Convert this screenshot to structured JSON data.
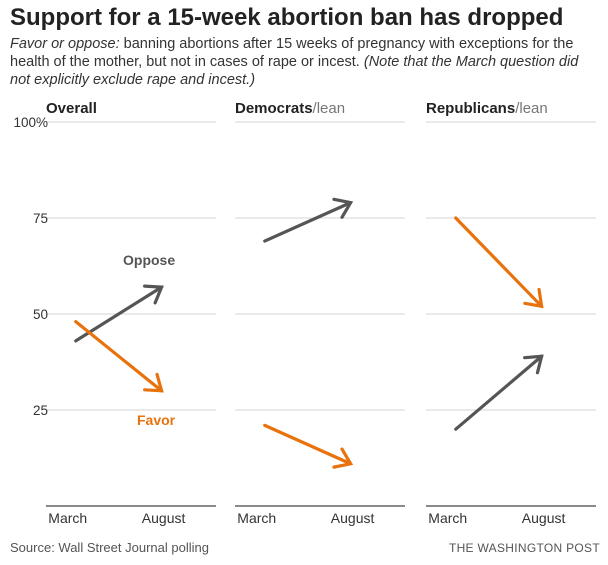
{
  "title": "Support for a 15-week abortion ban has dropped",
  "subtitle": {
    "lead": "Favor or oppose:",
    "body": " banning abortions after 15 weeks of pregnancy with exceptions for the health of the mother, but not in cases of rape or incest. ",
    "note": "(Note that the March question did not explicitly exclude rape and incest.)"
  },
  "source": "Source: Wall Street Journal polling",
  "credit": "THE WASHINGTON POST",
  "colors": {
    "favor": "#E8720C",
    "oppose": "#555555",
    "grid": "#d4d4d4",
    "axis": "#444444"
  },
  "chart_data": [
    {
      "type": "line",
      "panel_title": "Overall",
      "panel_subtitle": "",
      "x": [
        "March",
        "August"
      ],
      "y_ticks": [
        "100%",
        "75",
        "50",
        "25"
      ],
      "ylim": [
        0,
        100
      ],
      "series": [
        {
          "name": "Oppose",
          "values": [
            43,
            57
          ]
        },
        {
          "name": "Favor",
          "values": [
            48,
            30
          ]
        }
      ]
    },
    {
      "type": "line",
      "panel_title": "Democrats",
      "panel_subtitle": "/lean",
      "x": [
        "March",
        "August"
      ],
      "ylim": [
        0,
        100
      ],
      "series": [
        {
          "name": "",
          "key": "oppose",
          "values": [
            69,
            79
          ]
        },
        {
          "name": "",
          "key": "favor",
          "values": [
            21,
            11
          ]
        }
      ]
    },
    {
      "type": "line",
      "panel_title": "Republicans",
      "panel_subtitle": "/lean",
      "x": [
        "March",
        "August"
      ],
      "ylim": [
        0,
        100
      ],
      "series": [
        {
          "name": "",
          "key": "favor",
          "values": [
            75,
            52
          ]
        },
        {
          "name": "",
          "key": "oppose",
          "values": [
            20,
            39
          ]
        }
      ]
    }
  ]
}
